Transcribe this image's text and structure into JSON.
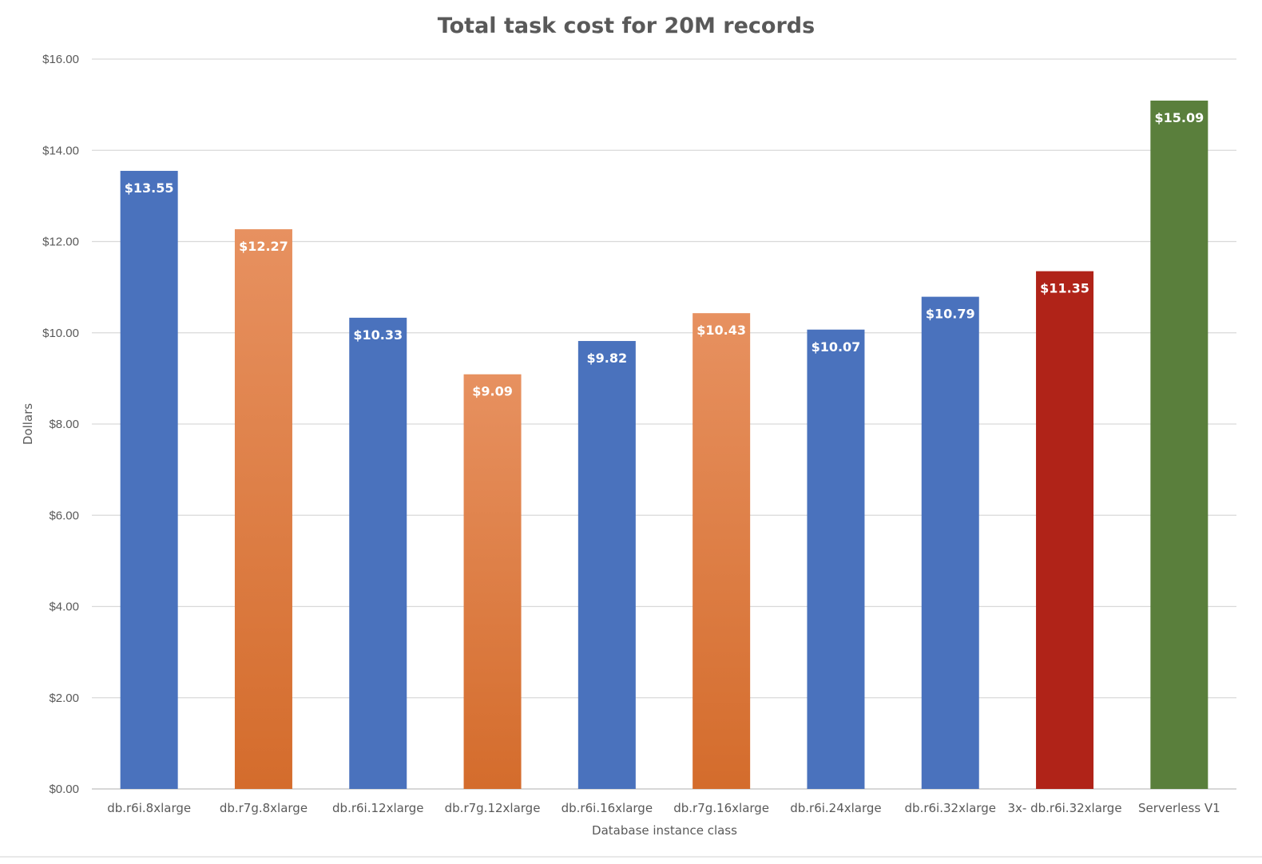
{
  "chart_data": {
    "type": "bar",
    "title": "Total task cost for 20M records",
    "xlabel": "Database instance class",
    "ylabel": "Dollars",
    "ylim": [
      0,
      16
    ],
    "ytick_values": [
      0,
      2,
      4,
      6,
      8,
      10,
      12,
      14,
      16
    ],
    "ytick_labels": [
      "$0.00",
      "$2.00",
      "$4.00",
      "$6.00",
      "$8.00",
      "$10.00",
      "$12.00",
      "$14.00",
      "$16.00"
    ],
    "grid": true,
    "legend": "none",
    "categories": [
      "db.r6i.8xlarge",
      "db.r7g.8xlarge",
      "db.r6i.12xlarge",
      "db.r7g.12xlarge",
      "db.r6i.16xlarge",
      "db.r7g.16xlarge",
      "db.r6i.24xlarge",
      "db.r6i.32xlarge",
      "3x- db.r6i.32xlarge",
      "Serverless V1"
    ],
    "values": [
      13.55,
      12.27,
      10.33,
      9.09,
      9.82,
      10.43,
      10.07,
      10.79,
      11.35,
      15.09
    ],
    "data_labels": [
      "$13.55",
      "$12.27",
      "$10.33",
      "$9.09",
      "$9.82",
      "$10.43",
      "$10.07",
      "$10.79",
      "$11.35",
      "$15.09"
    ],
    "bar_colors": [
      "blue",
      "orange",
      "blue",
      "orange",
      "blue",
      "orange",
      "blue",
      "blue",
      "red",
      "green"
    ],
    "colors": {
      "blue": "#4a72bd",
      "orange_top": "#e79160",
      "orange_bottom": "#d46c2c",
      "red": "#b02318",
      "green": "#5a7f3c"
    }
  }
}
